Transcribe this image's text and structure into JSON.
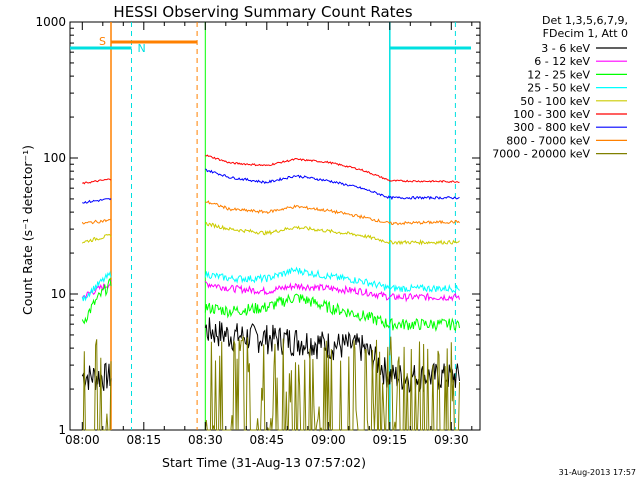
{
  "chart_data": {
    "type": "line",
    "title": "HESSI Observing Summary Count Rates",
    "xlabel": "Start Time (31-Aug-13 07:57:02)",
    "ylabel": "Count Rate (s⁻¹ detector⁻¹)",
    "y_scale": "log",
    "ylim": [
      1,
      1000
    ],
    "xlim": [
      "07:57",
      "09:37"
    ],
    "x_ticks": [
      "08:00",
      "08:15",
      "08:30",
      "08:45",
      "09:00",
      "09:15",
      "09:30"
    ],
    "y_ticks": [
      "1",
      "10",
      "100",
      "1000"
    ],
    "legend_header": [
      "Det 1,3,5,6,7,9,",
      "FDecim 1, Att 0"
    ],
    "legend_position": "right",
    "footer": "31-Aug-2013 17:57",
    "flags": [
      {
        "label": "S",
        "color": "#ff8000"
      },
      {
        "label": "N",
        "color": "#00e0e0"
      }
    ],
    "series": [
      {
        "name": "3 - 6 keV",
        "color": "#000000",
        "x": [
          "08:00",
          "08:07",
          "08:30",
          "08:36",
          "08:45",
          "08:52",
          "09:00",
          "09:08",
          "09:15",
          "09:32"
        ],
        "values": [
          2.5,
          2.5,
          5.5,
          5.0,
          4.8,
          4.6,
          4.3,
          4.1,
          2.5,
          2.5
        ]
      },
      {
        "name": "6 - 12 keV",
        "color": "#ff00ff",
        "x": [
          "08:00",
          "08:07",
          "08:30",
          "08:36",
          "08:45",
          "08:52",
          "09:00",
          "09:08",
          "09:15",
          "09:32"
        ],
        "values": [
          9.5,
          12,
          12,
          11,
          10.5,
          11.5,
          11,
          10.5,
          9.5,
          9.5
        ]
      },
      {
        "name": "12 - 25 keV",
        "color": "#00ff00",
        "x": [
          "08:00",
          "08:07",
          "08:30",
          "08:36",
          "08:45",
          "08:52",
          "09:00",
          "09:08",
          "09:15",
          "09:32"
        ],
        "values": [
          6,
          12,
          8,
          7.5,
          8,
          9.5,
          8,
          7,
          6,
          6
        ]
      },
      {
        "name": "25 - 50 keV",
        "color": "#00ffff",
        "x": [
          "08:00",
          "08:07",
          "08:30",
          "08:36",
          "08:45",
          "08:52",
          "09:00",
          "09:08",
          "09:15",
          "09:32"
        ],
        "values": [
          9,
          14,
          14,
          13,
          13,
          15,
          13.5,
          12.5,
          11,
          11
        ]
      },
      {
        "name": "50 - 100 keV",
        "color": "#cccc00",
        "x": [
          "08:00",
          "08:07",
          "08:30",
          "08:36",
          "08:45",
          "08:52",
          "09:00",
          "09:08",
          "09:15",
          "09:32"
        ],
        "values": [
          24,
          27,
          33,
          30,
          28,
          31,
          29,
          27,
          24,
          24
        ]
      },
      {
        "name": "100 - 300 keV",
        "color": "#ff0000",
        "x": [
          "08:00",
          "08:07",
          "08:30",
          "08:36",
          "08:45",
          "08:52",
          "09:00",
          "09:08",
          "09:15",
          "09:32"
        ],
        "values": [
          65,
          70,
          105,
          92,
          88,
          98,
          93,
          82,
          68,
          67
        ]
      },
      {
        "name": "300 - 800 keV",
        "color": "#0000ff",
        "x": [
          "08:00",
          "08:07",
          "08:30",
          "08:36",
          "08:45",
          "08:52",
          "09:00",
          "09:08",
          "09:15",
          "09:32"
        ],
        "values": [
          47,
          50,
          82,
          72,
          66,
          74,
          68,
          60,
          51,
          51
        ]
      },
      {
        "name": "800 - 7000 keV",
        "color": "#ff8000",
        "x": [
          "08:00",
          "08:07",
          "08:30",
          "08:36",
          "08:45",
          "08:52",
          "09:00",
          "09:08",
          "09:15",
          "09:32"
        ],
        "values": [
          33,
          35,
          48,
          42,
          40,
          44,
          41,
          37,
          33,
          34
        ]
      },
      {
        "name": "7000 - 20000 keV",
        "color": "#808000",
        "x": [
          "08:00",
          "08:07",
          "08:30",
          "08:36",
          "08:45",
          "08:52",
          "09:00",
          "09:08",
          "09:15",
          "09:32"
        ],
        "values": [
          1.5,
          1.5,
          1.3,
          1.3,
          1.6,
          2.2,
          1.6,
          1.3,
          1.3,
          1.3
        ]
      }
    ]
  }
}
